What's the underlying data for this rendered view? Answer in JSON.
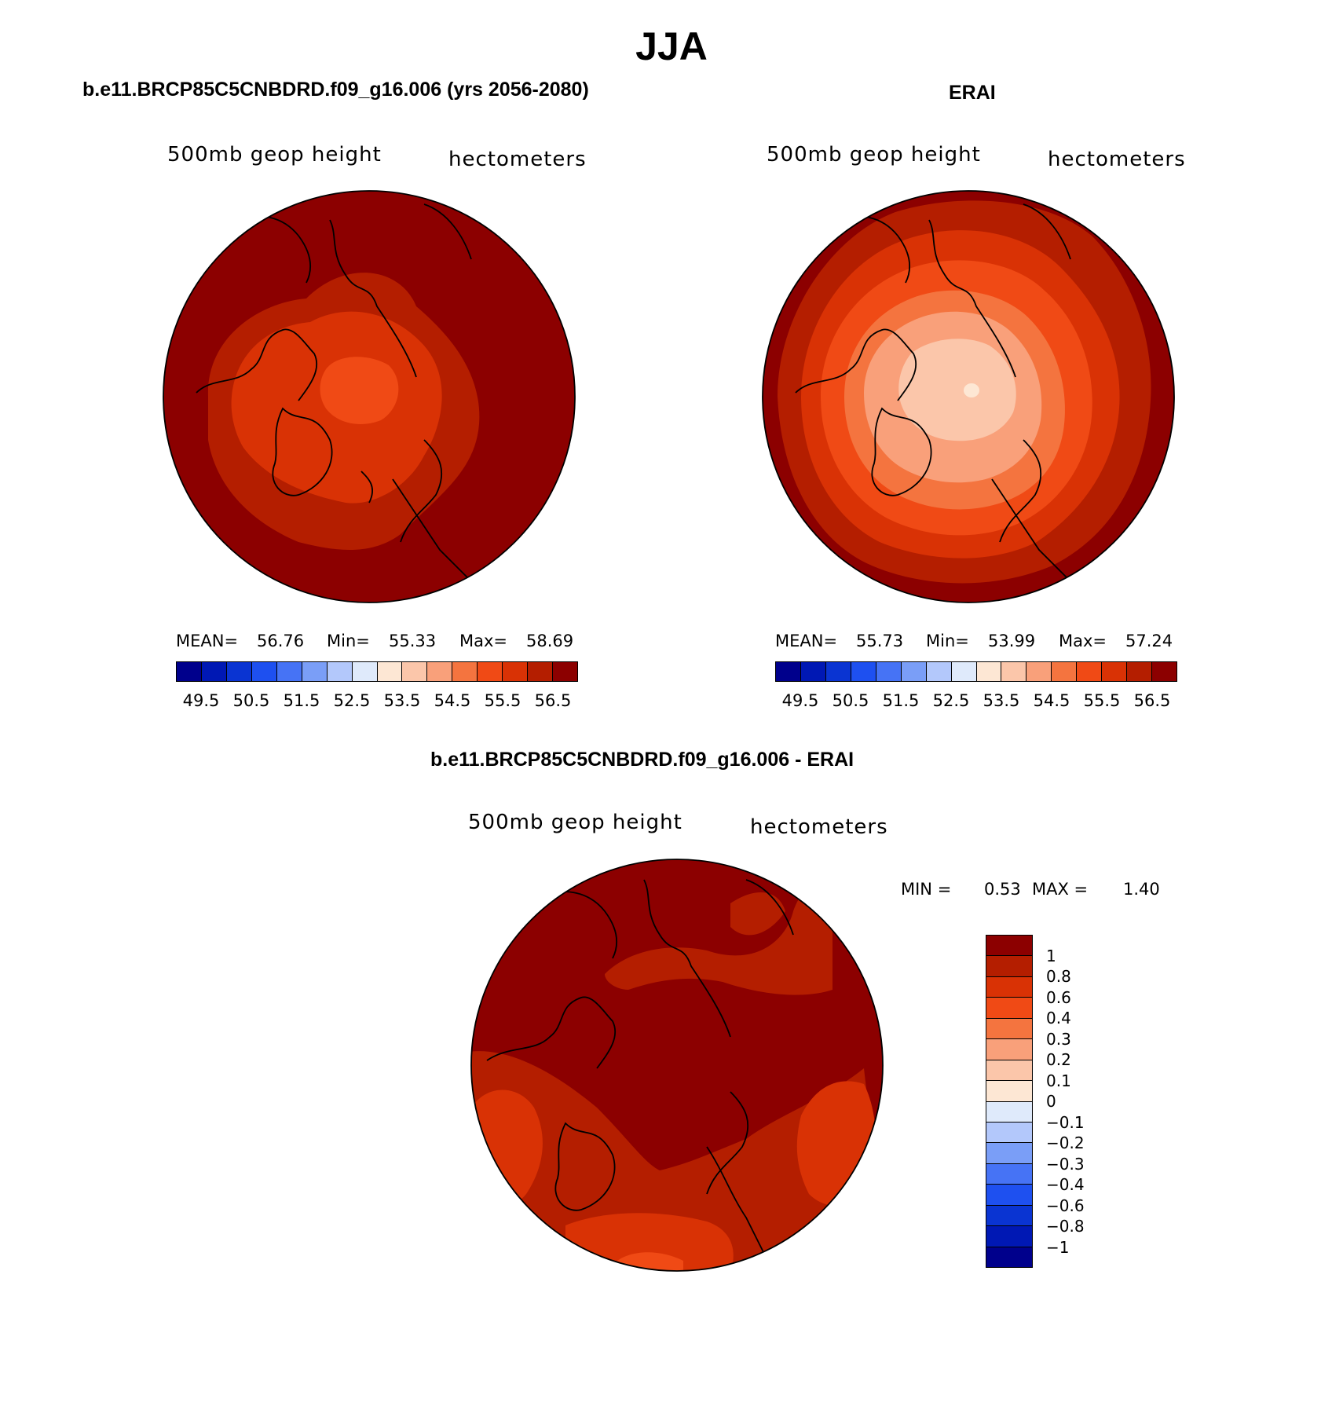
{
  "title": "JJA",
  "panels": {
    "left": {
      "title": "b.e11.BRCP85C5CNBDRD.f09_g16.006 (yrs 2056-2080)",
      "variable": "500mb geop height",
      "units": "hectometers",
      "mean_label": "MEAN=",
      "mean": "56.76",
      "min_label": "Min=",
      "min": "55.33",
      "max_label": "Max=",
      "max": "58.69"
    },
    "right": {
      "title": "ERAI",
      "variable": "500mb geop height",
      "units": "hectometers",
      "mean_label": "MEAN=",
      "mean": "55.73",
      "min_label": "Min=",
      "min": "53.99",
      "max_label": "Max=",
      "max": "57.24"
    },
    "diff": {
      "title": "b.e11.BRCP85C5CNBDRD.f09_g16.006 - ERAI",
      "variable": "500mb geop height",
      "units": "hectometers",
      "min_label": "MIN =",
      "min": "0.53",
      "max_label": "MAX =",
      "max": "1.40"
    }
  },
  "colorbar_main": {
    "colors": [
      "#00008c",
      "#0018b4",
      "#0a34d2",
      "#1e50f0",
      "#4673f5",
      "#7a9ef7",
      "#b3c8fb",
      "#dfeafb",
      "#fde7d4",
      "#fbc6aa",
      "#f9a07a",
      "#f4743f",
      "#f04a15",
      "#d93205",
      "#b41e00",
      "#8c0000"
    ],
    "tick_labels": [
      "49.5",
      "50.5",
      "51.5",
      "52.5",
      "53.5",
      "54.5",
      "55.5",
      "56.5"
    ]
  },
  "colorbar_diff": {
    "colors": [
      "#8c0000",
      "#b41e00",
      "#d93205",
      "#f04a15",
      "#f4743f",
      "#f9a07a",
      "#fbc6aa",
      "#fde7d4",
      "#dfeafb",
      "#b3c8fb",
      "#7a9ef7",
      "#4673f5",
      "#1e50f0",
      "#0a34d2",
      "#0018b4",
      "#00008c"
    ],
    "tick_labels": [
      "1",
      "0.8",
      "0.6",
      "0.4",
      "0.3",
      "0.2",
      "0.1",
      "0",
      "−0.1",
      "−0.2",
      "−0.3",
      "−0.4",
      "−0.6",
      "−0.8",
      "−1"
    ]
  },
  "map_colors": {
    "c56_5": "#8c0000",
    "c56_0": "#b41e00",
    "c55_5": "#d93205",
    "c55_0": "#f04a15",
    "c54_5": "#f4743f",
    "c54_0": "#f9a07a",
    "c53_5": "#fbc6aa",
    "c53_0": "#fde7d4",
    "d1": "#8c0000",
    "d08": "#b41e00",
    "d06": "#d93205",
    "d04": "#f04a15"
  }
}
